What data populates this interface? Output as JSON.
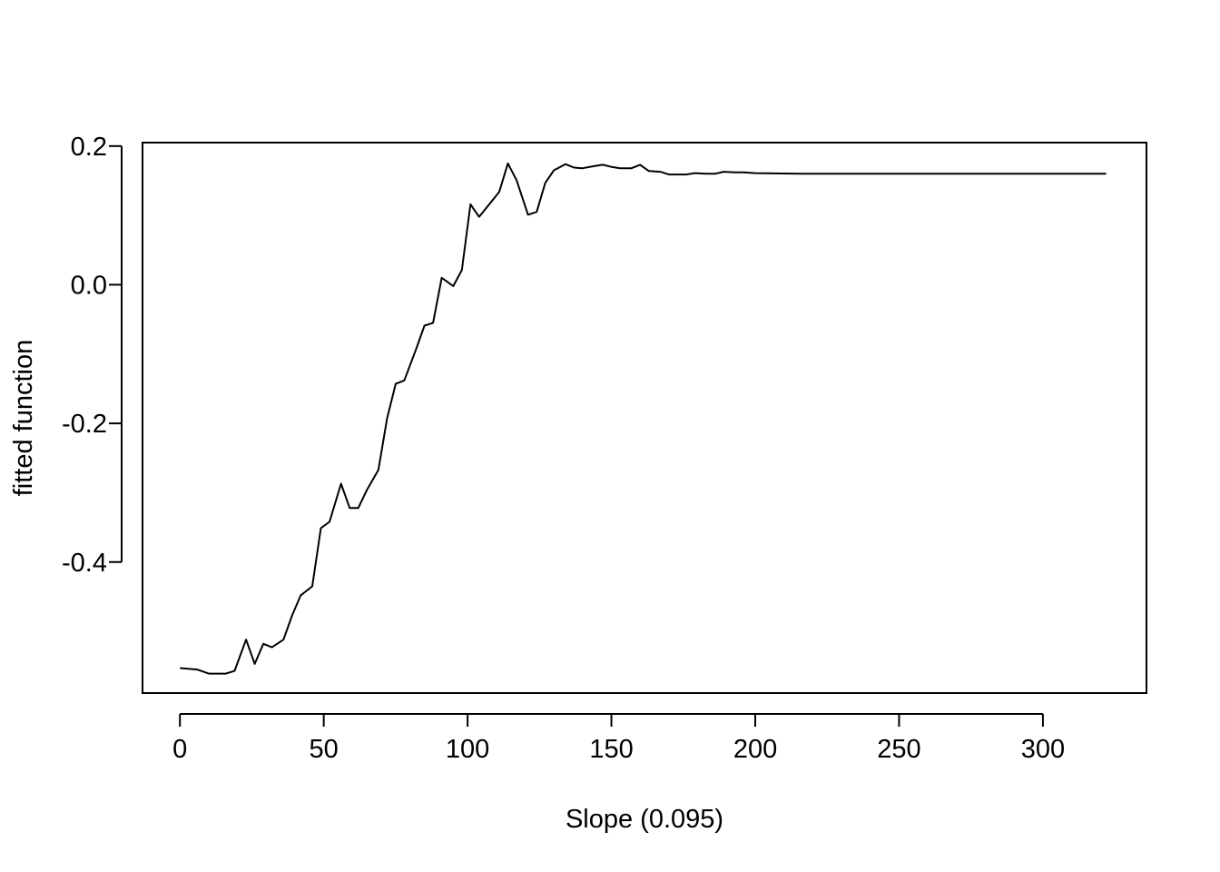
{
  "chart_data": {
    "type": "line",
    "title": "",
    "xlabel": "Slope  (0.095)",
    "ylabel": "fitted function",
    "xlim": [
      -13,
      336
    ],
    "ylim": [
      -0.589,
      0.205
    ],
    "xticks": [
      0,
      50,
      100,
      150,
      200,
      250,
      300
    ],
    "xtick_labels": [
      "0",
      "50",
      "100",
      "150",
      "200",
      "250",
      "300"
    ],
    "yticks": [
      -0.4,
      -0.2,
      0.0,
      0.2
    ],
    "ytick_labels": [
      "-0.4",
      "-0.2",
      "0.0",
      "0.2"
    ],
    "grid": false,
    "legend": "none",
    "line_color": "#000000",
    "series": [
      {
        "x": [
          0,
          6,
          10,
          16,
          19,
          23,
          26,
          29,
          32,
          36,
          39,
          42,
          46,
          49,
          52,
          56,
          59,
          62,
          65,
          69,
          72,
          75,
          78,
          82,
          85,
          88,
          91,
          95,
          98,
          101,
          104,
          111,
          114,
          117,
          121,
          124,
          127,
          130,
          134,
          137,
          140,
          144,
          147,
          150,
          153,
          157,
          160,
          163,
          167,
          170,
          173,
          176,
          179,
          183,
          186,
          189,
          193,
          196,
          200,
          216,
          322
        ],
        "y": [
          -0.553,
          -0.555,
          -0.561,
          -0.561,
          -0.557,
          -0.512,
          -0.547,
          -0.518,
          -0.523,
          -0.512,
          -0.477,
          -0.448,
          -0.435,
          -0.351,
          -0.342,
          -0.287,
          -0.322,
          -0.322,
          -0.296,
          -0.267,
          -0.193,
          -0.143,
          -0.138,
          -0.094,
          -0.059,
          -0.055,
          0.01,
          -0.002,
          0.021,
          0.116,
          0.098,
          0.134,
          0.175,
          0.151,
          0.101,
          0.105,
          0.147,
          0.165,
          0.174,
          0.169,
          0.168,
          0.171,
          0.173,
          0.17,
          0.168,
          0.168,
          0.173,
          0.164,
          0.163,
          0.159,
          0.159,
          0.159,
          0.161,
          0.16,
          0.16,
          0.163,
          0.162,
          0.162,
          0.161,
          0.16,
          0.16
        ]
      }
    ]
  }
}
